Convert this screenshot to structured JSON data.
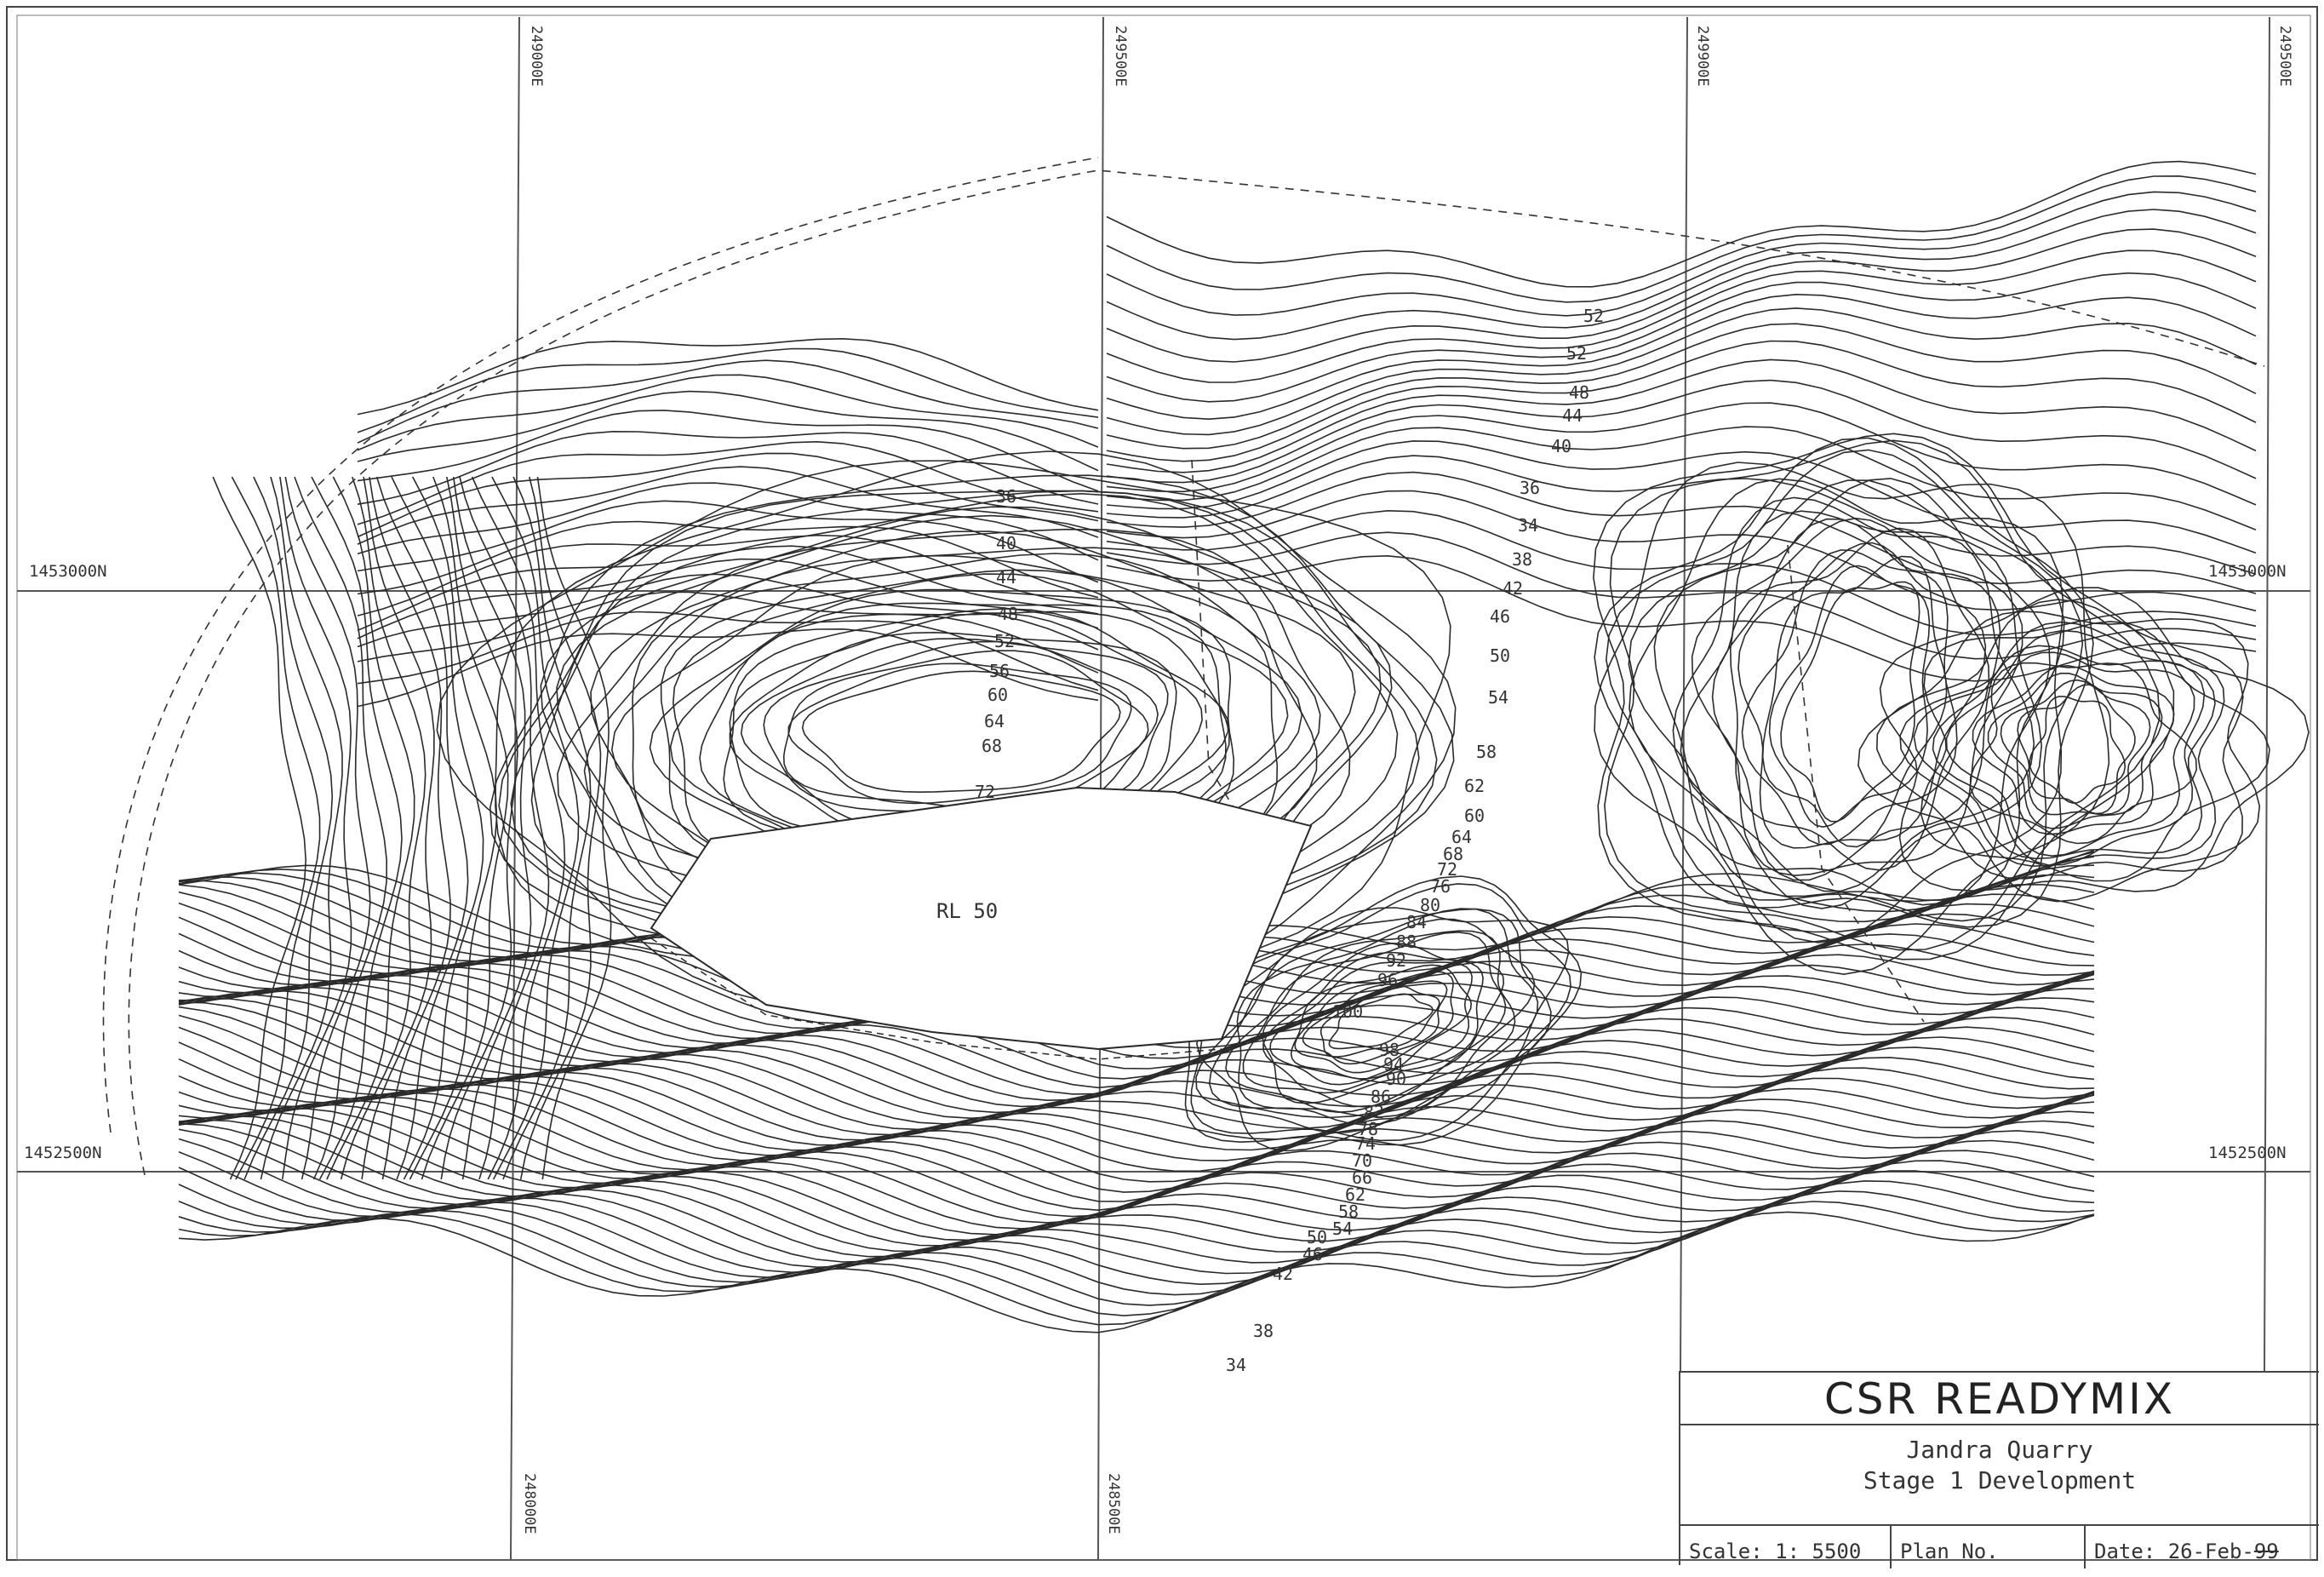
{
  "grid": {
    "northings": {
      "top": "1453000N",
      "bottom": "1452500N"
    },
    "eastings_top": [
      "249000E",
      "249500E",
      "249900E",
      "249500E"
    ],
    "eastings_bottom": [
      "248000E",
      "248500E"
    ]
  },
  "map": {
    "pit_floor_label": "RL 50",
    "contour_labels": {
      "north_slope": [
        "36",
        "40",
        "44",
        "48",
        "52",
        "56",
        "60",
        "64",
        "68",
        "72"
      ],
      "northeast": [
        "52",
        "52",
        "48",
        "44",
        "40",
        "36",
        "34",
        "38",
        "42",
        "46",
        "50",
        "54",
        "58",
        "62"
      ],
      "east_slope": [
        "60",
        "64",
        "68",
        "72",
        "76",
        "80",
        "84",
        "88",
        "92",
        "96"
      ],
      "south": [
        "100",
        "98",
        "94",
        "90",
        "86",
        "82",
        "78",
        "74",
        "70",
        "66",
        "62",
        "58",
        "54",
        "50",
        "46",
        "42",
        "38",
        "34"
      ]
    }
  },
  "title_block": {
    "company": "CSR READYMIX",
    "project": "Jandra Quarry",
    "stage": "Stage 1 Development",
    "scale_label": "Scale: 1:  5500",
    "plan_label": "Plan No.",
    "date_label": "Date: 26-Feb-",
    "date_year": "99"
  },
  "colors": {
    "line": "#2a2a2a",
    "grid": "#555555",
    "paper": "#ffffff"
  }
}
